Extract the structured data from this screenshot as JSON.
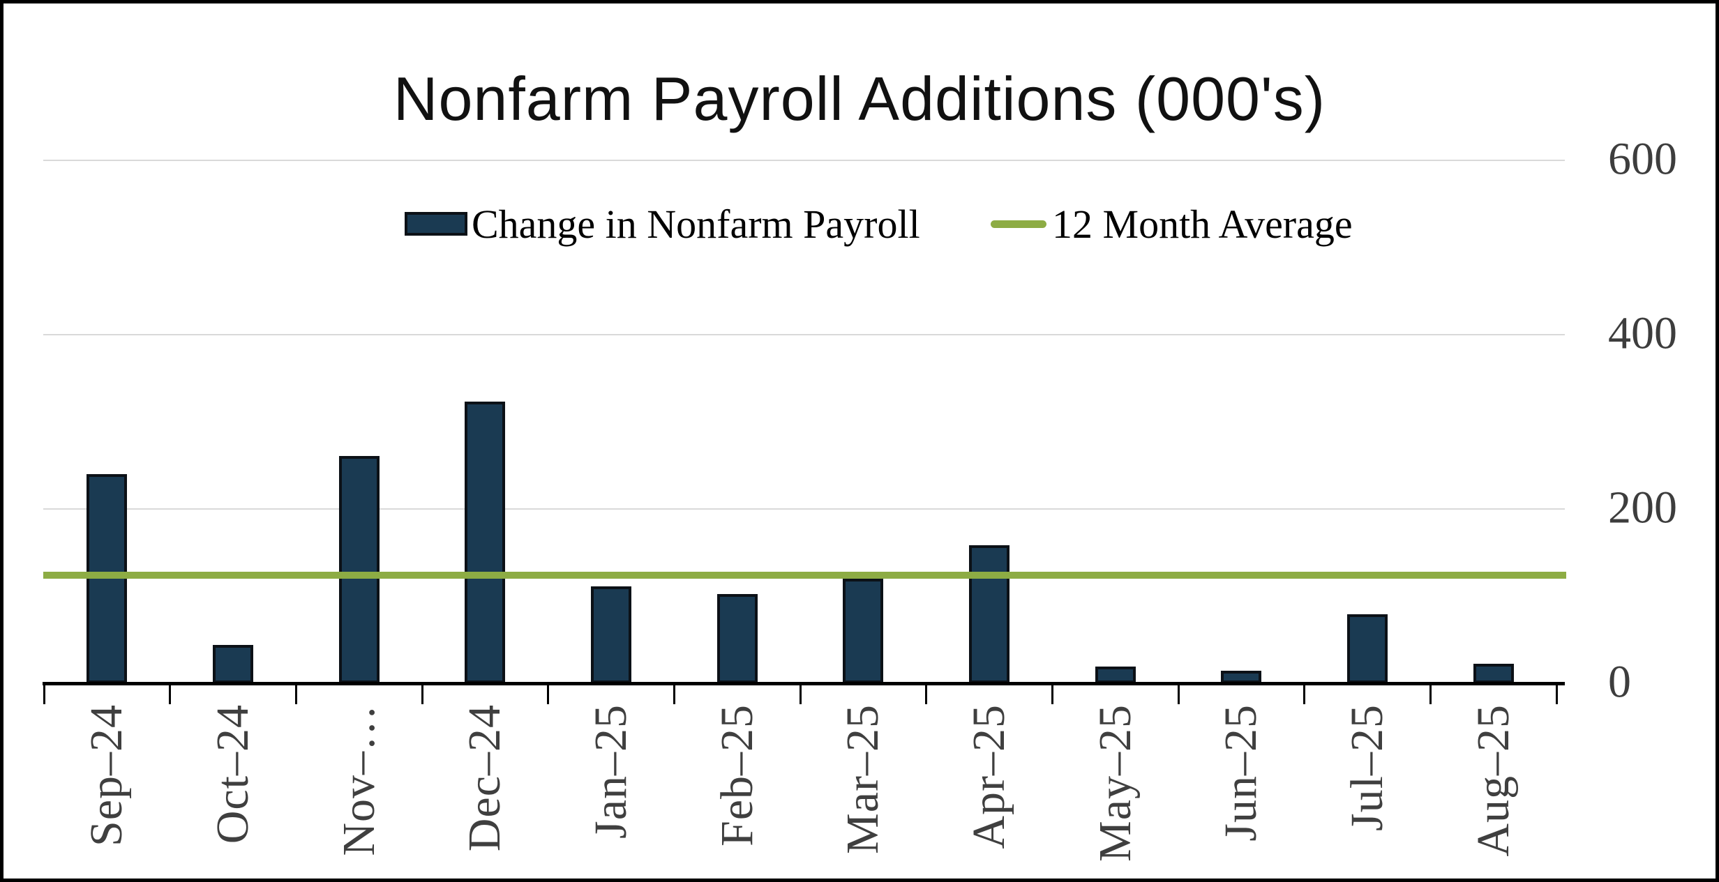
{
  "title": "Nonfarm Payroll Additions (000's)",
  "legend": {
    "bar_series_label": "Change in Nonfarm Payroll",
    "line_series_label": "12 Month Average"
  },
  "chart_data": {
    "type": "bar",
    "title": "Nonfarm Payroll Additions (000's)",
    "categories": [
      "Sep–24",
      "Oct–24",
      "Nov–…",
      "Dec–24",
      "Jan–25",
      "Feb–25",
      "Mar–25",
      "Apr–25",
      "May–25",
      "Jun–25",
      "Jul–25",
      "Aug–25"
    ],
    "series": [
      {
        "name": "Change in Nonfarm Payroll",
        "type": "bar",
        "values": [
          240,
          44,
          261,
          323,
          111,
          102,
          120,
          158,
          19,
          14,
          79,
          22
        ]
      },
      {
        "name": "12 Month Average",
        "type": "line",
        "value": 124
      }
    ],
    "xlabel": "",
    "ylabel": "",
    "ylim": [
      0,
      600
    ],
    "y_ticks": [
      0,
      200,
      400,
      600
    ],
    "y_axis_side": "right",
    "x_label_rotation": 90,
    "grid": "horizontal-at-200-400-600",
    "legend_position": "top-center"
  },
  "colors": {
    "bar_fill": "#1a3a52",
    "bar_border": "#0c1117",
    "average_line": "#8dac44",
    "gridline": "#d9d9d9",
    "axis": "#000000",
    "axis_text": "#3d3d3d",
    "title_text": "#111111",
    "frame_border": "#000000",
    "background": "#ffffff"
  }
}
